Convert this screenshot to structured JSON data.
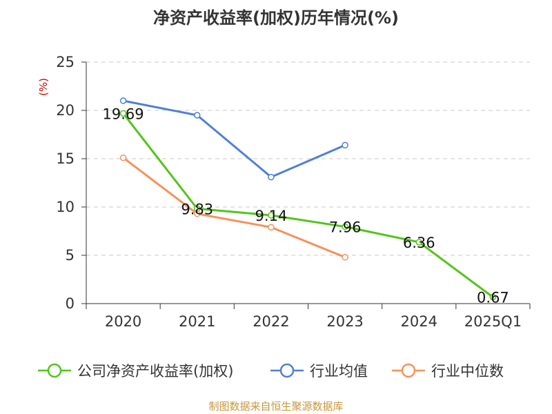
{
  "chart_data": {
    "type": "line",
    "title": "净资产收益率(加权)历年情况(%)",
    "ylabel": "(%)",
    "categories": [
      "2020",
      "2021",
      "2022",
      "2023",
      "2024",
      "2025Q1"
    ],
    "yticks": [
      "0",
      "5",
      "10",
      "15",
      "20",
      "25"
    ],
    "ylim": [
      0,
      25
    ],
    "grid": true,
    "legend_position": "bottom",
    "series": [
      {
        "name": "公司净资产收益率(加权)",
        "color": "#52c41a",
        "values": [
          19.69,
          9.83,
          9.14,
          7.96,
          6.36,
          0.67
        ],
        "labels": [
          "19.69",
          "9.83",
          "9.14",
          "7.96",
          "6.36",
          "0.67"
        ]
      },
      {
        "name": "行业均值",
        "color": "#4e7fd6",
        "values": [
          21.0,
          19.5,
          13.1,
          16.4,
          null,
          null
        ]
      },
      {
        "name": "行业中位数",
        "color": "#f5915a",
        "values": [
          15.1,
          9.3,
          7.9,
          4.8,
          null,
          null
        ]
      }
    ],
    "source": "制图数据来自恒生聚源数据库"
  }
}
